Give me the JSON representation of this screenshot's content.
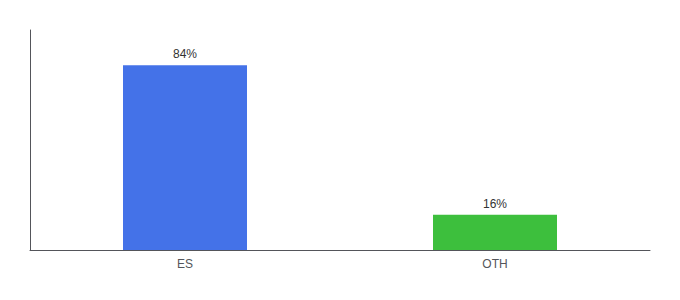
{
  "chart_data": {
    "type": "bar",
    "categories": [
      "ES",
      "OTH"
    ],
    "values": [
      84,
      16
    ],
    "value_labels": [
      "84%",
      "16%"
    ],
    "colors": [
      "#4472e8",
      "#3dbf3d"
    ],
    "ylim": [
      0,
      100
    ],
    "grid": false,
    "data_labels": true,
    "tick_labels": "x"
  }
}
